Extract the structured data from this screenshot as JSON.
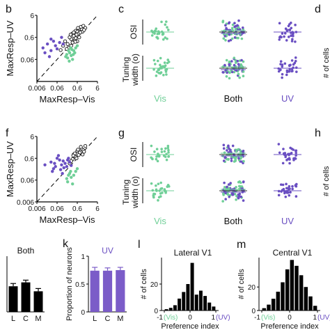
{
  "panel_letters": {
    "b": "b",
    "c": "c",
    "d": "d",
    "f": "f",
    "g": "g",
    "h": "h",
    "k": "k",
    "l": "l",
    "m": "m"
  },
  "colors": {
    "vis": "#6fcf97",
    "uv": "#6a4fc2",
    "both": "#111111",
    "bar_black": "#000000",
    "bar_uv": "#7b5cc8"
  },
  "chart_data": [
    {
      "panel": "b",
      "type": "scatter",
      "xlabel": "MaxResp–Vis",
      "ylabel": "MaxResp–UV",
      "x_ticks": [
        "0.006",
        "0.06",
        "0.6",
        "6"
      ],
      "y_ticks": [
        "0.06",
        "0.6",
        "6"
      ],
      "xlim": [
        0.006,
        6
      ],
      "ylim": [
        0.006,
        6
      ],
      "log_scale": true,
      "unity_line": true,
      "series": [
        {
          "group": "both",
          "points": [
            [
              0.35,
              0.9
            ],
            [
              0.5,
              1.2
            ],
            [
              0.6,
              1.1
            ],
            [
              0.8,
              1.5
            ],
            [
              0.4,
              0.7
            ],
            [
              0.3,
              0.5
            ],
            [
              0.7,
              0.9
            ],
            [
              1.0,
              1.4
            ],
            [
              0.9,
              1.8
            ],
            [
              1.2,
              2.0
            ],
            [
              0.25,
              0.6
            ],
            [
              0.45,
              0.45
            ],
            [
              0.55,
              0.8
            ],
            [
              0.2,
              0.3
            ],
            [
              0.15,
              0.4
            ],
            [
              1.5,
              1.6
            ],
            [
              0.65,
              1.6
            ],
            [
              0.35,
              0.35
            ],
            [
              0.28,
              0.8
            ],
            [
              1.1,
              1.1
            ],
            [
              0.75,
              0.6
            ],
            [
              0.5,
              0.55
            ],
            [
              0.4,
              1.0
            ],
            [
              0.22,
              0.2
            ],
            [
              0.3,
              0.25
            ],
            [
              0.6,
              0.4
            ],
            [
              0.85,
              1.0
            ],
            [
              1.3,
              1.3
            ],
            [
              0.18,
              0.18
            ],
            [
              0.12,
              0.25
            ],
            [
              0.09,
              0.16
            ],
            [
              0.48,
              0.38
            ]
          ]
        },
        {
          "group": "vis",
          "points": [
            [
              0.2,
              0.07
            ],
            [
              0.3,
              0.09
            ],
            [
              0.25,
              0.12
            ],
            [
              0.4,
              0.15
            ],
            [
              0.18,
              0.1
            ],
            [
              0.5,
              0.2
            ],
            [
              0.35,
              0.06
            ],
            [
              0.22,
              0.15
            ],
            [
              0.6,
              0.25
            ],
            [
              0.28,
              0.2
            ],
            [
              0.45,
              0.12
            ],
            [
              0.16,
              0.08
            ],
            [
              0.32,
              0.17
            ],
            [
              0.38,
              0.1
            ],
            [
              0.24,
              0.05
            ]
          ]
        },
        {
          "group": "uv",
          "points": [
            [
              0.012,
              0.2
            ],
            [
              0.02,
              0.3
            ],
            [
              0.03,
              0.15
            ],
            [
              0.015,
              0.12
            ],
            [
              0.05,
              0.25
            ],
            [
              0.04,
              0.4
            ],
            [
              0.08,
              0.35
            ],
            [
              0.1,
              0.6
            ],
            [
              0.03,
              0.5
            ],
            [
              0.06,
              0.18
            ],
            [
              0.12,
              0.3
            ],
            [
              0.025,
              0.08
            ]
          ]
        }
      ]
    },
    {
      "panel": "c",
      "type": "scatter",
      "ylabel_top": "OSI",
      "ylabel_bottom": "Tuning width (o)",
      "categories": [
        "Vis",
        "Both",
        "UV"
      ]
    },
    {
      "panel": "f",
      "type": "scatter",
      "xlabel": "MaxResp–Vis",
      "ylabel": "MaxResp–UV",
      "x_ticks": [
        "0.006",
        "0.06",
        "0.6",
        "6"
      ],
      "y_ticks": [
        "0.006",
        "0.06",
        "0.6",
        "6"
      ],
      "xlim": [
        0.006,
        6
      ],
      "ylim": [
        0.006,
        6
      ],
      "log_scale": true,
      "unity_line": true,
      "series": [
        {
          "group": "both",
          "points": [
            [
              0.4,
              0.9
            ],
            [
              0.6,
              1.3
            ],
            [
              0.8,
              1.1
            ],
            [
              1.0,
              1.6
            ],
            [
              0.5,
              0.7
            ],
            [
              0.35,
              0.55
            ],
            [
              0.7,
              0.85
            ],
            [
              1.2,
              1.4
            ],
            [
              0.9,
              2.0
            ],
            [
              1.5,
              2.2
            ],
            [
              0.3,
              0.45
            ],
            [
              0.45,
              1.0
            ],
            [
              0.55,
              0.6
            ],
            [
              1.1,
              0.9
            ],
            [
              0.65,
              1.5
            ],
            [
              0.25,
              0.35
            ],
            [
              1.3,
              1.2
            ],
            [
              0.38,
              0.8
            ]
          ]
        },
        {
          "group": "vis",
          "points": [
            [
              0.2,
              0.05
            ],
            [
              0.3,
              0.08
            ],
            [
              0.25,
              0.12
            ],
            [
              0.4,
              0.1
            ],
            [
              0.18,
              0.07
            ],
            [
              0.5,
              0.15
            ],
            [
              0.35,
              0.04
            ],
            [
              0.22,
              0.1
            ],
            [
              0.6,
              0.2
            ],
            [
              0.28,
              0.15
            ]
          ]
        },
        {
          "group": "uv",
          "points": [
            [
              0.015,
              0.3
            ],
            [
              0.03,
              0.4
            ],
            [
              0.05,
              0.25
            ],
            [
              0.08,
              0.5
            ],
            [
              0.1,
              0.3
            ],
            [
              0.06,
              0.6
            ],
            [
              0.12,
              0.45
            ],
            [
              0.04,
              0.2
            ],
            [
              0.15,
              0.35
            ],
            [
              0.2,
              0.5
            ],
            [
              0.18,
              0.25
            ],
            [
              0.09,
              0.18
            ],
            [
              0.25,
              0.4
            ],
            [
              0.3,
              0.28
            ],
            [
              0.07,
              0.8
            ],
            [
              0.13,
              0.22
            ],
            [
              0.035,
              0.15
            ],
            [
              0.22,
              0.6
            ],
            [
              0.11,
              0.12
            ],
            [
              0.045,
              0.35
            ]
          ]
        }
      ]
    },
    {
      "panel": "g",
      "type": "scatter",
      "ylabel_top": "OSI",
      "ylabel_bottom": "Tuning width (o)",
      "categories": [
        "Vis",
        "Both",
        "UV"
      ]
    },
    {
      "panel": "both_bar",
      "type": "bar",
      "title": "Both",
      "categories": [
        "L",
        "C",
        "M"
      ],
      "values": [
        0.46,
        0.53,
        0.37
      ],
      "errors": [
        0.05,
        0.04,
        0.05
      ],
      "ylim": [
        0,
        1
      ]
    },
    {
      "panel": "k",
      "type": "bar",
      "title": "UV",
      "ylabel": "Proportion of neurons",
      "categories": [
        "L",
        "C",
        "M"
      ],
      "values": [
        0.74,
        0.74,
        0.75
      ],
      "errors": [
        0.06,
        0.05,
        0.05
      ],
      "y_ticks": [
        "0",
        "0.5",
        "1"
      ],
      "ylim": [
        0,
        1
      ]
    },
    {
      "panel": "l",
      "type": "bar",
      "title": "Lateral V1",
      "ylabel": "# of cells",
      "xlabel": "Preference index",
      "x_ticks": [
        "-1",
        "0",
        "1"
      ],
      "x_tick_notes": [
        "(Vis)",
        "",
        "(UV)"
      ],
      "y_ticks": [
        "0",
        "20"
      ],
      "ylim": [
        0,
        40
      ],
      "values": [
        1,
        2,
        4,
        9,
        14,
        20,
        36,
        12,
        15,
        11,
        6,
        3
      ]
    },
    {
      "panel": "m",
      "type": "bar",
      "title": "Central V1",
      "ylabel": "# of cells",
      "xlabel": "Preference index",
      "x_ticks": [
        "-1",
        "0",
        "1"
      ],
      "x_tick_notes": [
        "(Vis)",
        "",
        "(UV)"
      ],
      "y_ticks": [
        "0",
        "20"
      ],
      "ylim": [
        0,
        45
      ],
      "values": [
        2,
        5,
        10,
        16,
        24,
        35,
        43,
        38,
        30,
        20,
        12,
        4
      ]
    }
  ],
  "cut_labels": {
    "d": "# of cells",
    "h": "# of cells"
  }
}
